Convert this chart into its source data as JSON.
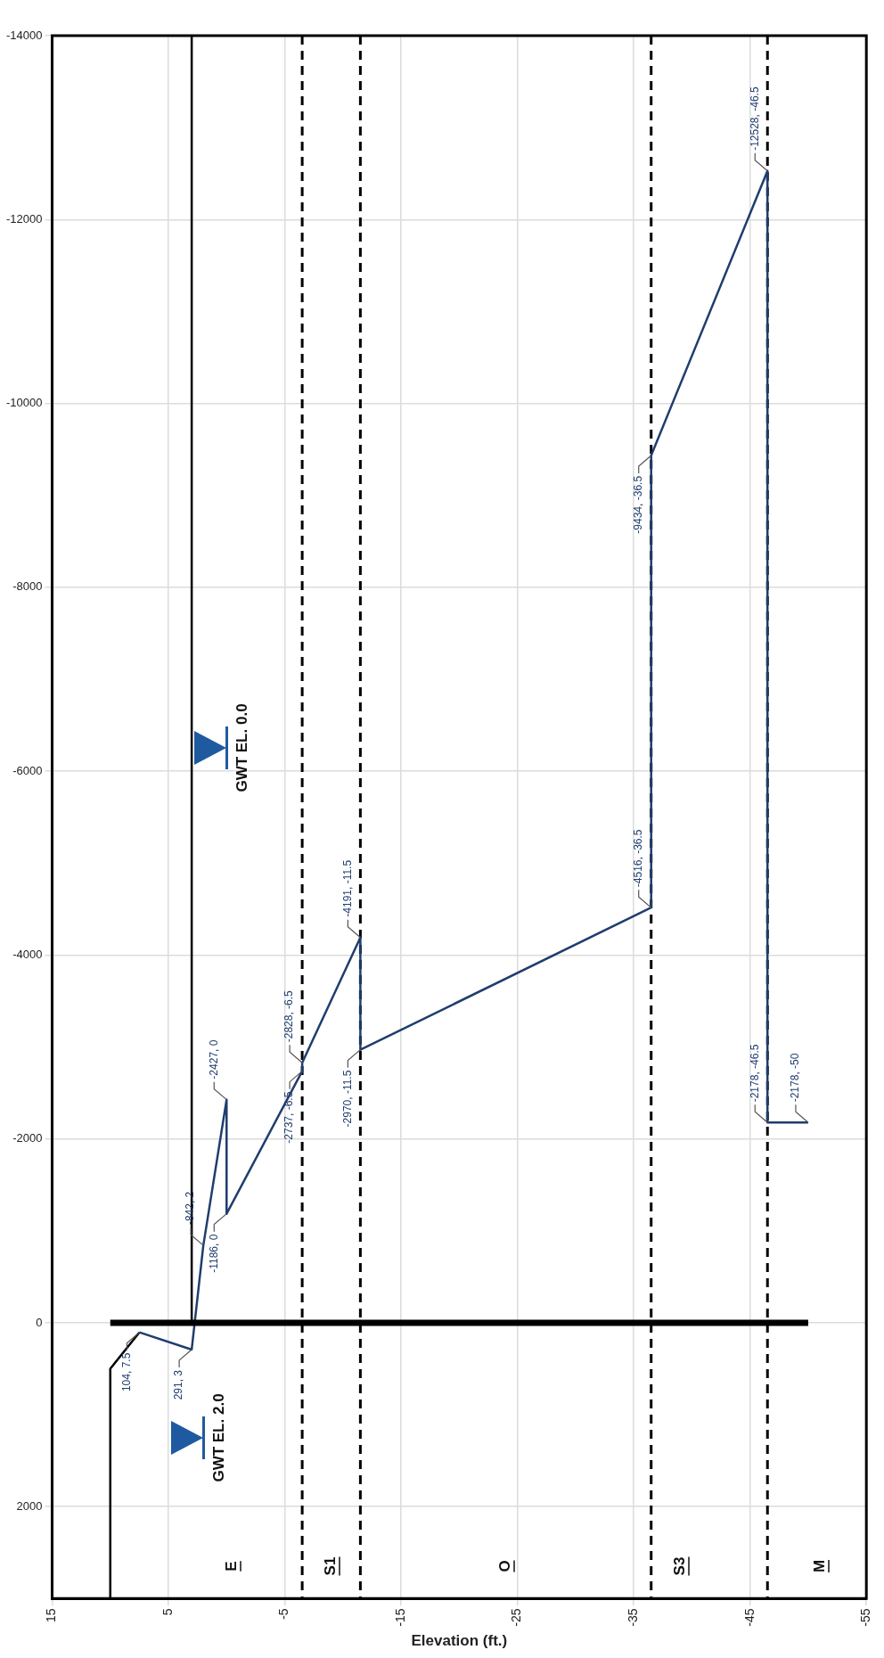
{
  "chart_data": {
    "type": "line",
    "xlabel": "Elevation (ft.)",
    "xlim": [
      15,
      -55
    ],
    "xticks": [
      15,
      5,
      -5,
      -15,
      -25,
      -35,
      -45,
      -55
    ],
    "ylim": [
      3000,
      -14000
    ],
    "yticks": [
      2000,
      0,
      -2000,
      -4000,
      -6000,
      -8000,
      -10000,
      -12000,
      -14000
    ],
    "grid": true,
    "legend": false,
    "marker": "none",
    "line_style": "solid",
    "series": [
      {
        "color": "#000000",
        "x": [
          10,
          10,
          7.5
        ],
        "values": [
          3000,
          500,
          104
        ]
      },
      {
        "color": "#000000",
        "x": [
          3,
          3
        ],
        "values": [
          0,
          -14000
        ]
      },
      {
        "color": "#000000",
        "x": [
          10,
          -50
        ],
        "values": [
          0,
          0
        ]
      },
      {
        "color": "#1f3d6e",
        "x": [
          7.5,
          3,
          2,
          0,
          0,
          -6.5,
          -6.5,
          -11.5,
          -11.5,
          -36.5,
          -36.5,
          -46.5,
          -46.5,
          -50
        ],
        "values": [
          104,
          291,
          -842,
          -2427,
          -1186,
          -2737,
          -2828,
          -4191,
          -2970,
          -4516,
          -9434,
          -12528,
          -2178,
          -2178
        ],
        "value_labels": [
          "104, 7.5",
          "291, 3",
          "-842, 2",
          "-2427, 0",
          "-1186, 0",
          "-2737, -6.5",
          "-2828, -6.5",
          "-4191, -11.5",
          "-2970, -11.5",
          "-4516, -36.5",
          "-9434, -36.5",
          "-12528, -46.5",
          "-2178, -46.5",
          "-2178, -50"
        ]
      }
    ],
    "ref_lines": [
      {
        "axis": "x",
        "value": -6.5,
        "color": "#000000",
        "line_style": "dashed"
      },
      {
        "axis": "x",
        "value": -11.5,
        "color": "#000000",
        "line_style": "dashed"
      },
      {
        "axis": "x",
        "value": -36.5,
        "color": "#000000",
        "line_style": "dashed"
      },
      {
        "axis": "x",
        "value": -46.5,
        "color": "#000000",
        "line_style": "dashed"
      }
    ],
    "annotations": [
      "E",
      "S1",
      "O",
      "S3",
      "M",
      "GWT EL. 2.0",
      "GWT EL. 0.0"
    ]
  }
}
